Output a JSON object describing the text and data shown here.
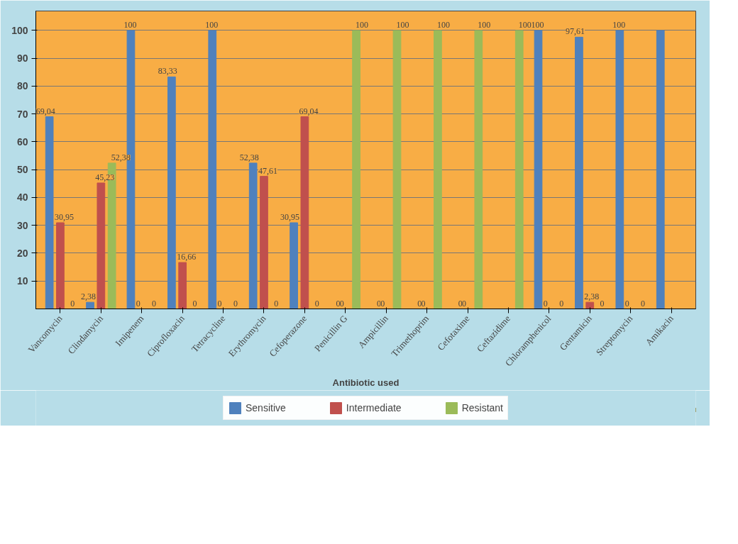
{
  "chart_data": {
    "type": "bar",
    "xlabel": "Antibiotic used",
    "categories": [
      "Vancomycin",
      "Clindamycin",
      "Imipenem",
      "Ciprofloxacin",
      "Tetracycline",
      "Erythromycin",
      "Cefoperazone",
      "Penicillin G",
      "Ampicillin",
      "Trimethoprim",
      "Cefotaxime",
      "Ceftazidime",
      "Chloramphenicol",
      "Gentamicin",
      "Streptomycin",
      "Amikacin"
    ],
    "series": [
      {
        "name": "Sensitive",
        "color": "#4f81bd",
        "values": [
          69.04,
          2.38,
          100,
          83.33,
          100,
          52.38,
          30.95,
          0,
          0,
          0,
          0,
          0,
          100,
          97.61,
          100,
          100
        ],
        "value_labels": [
          "69,04",
          "2,38",
          "100",
          "83,33",
          "100",
          "52,38",
          "30,95",
          "0",
          "0",
          "0",
          "0",
          null,
          "100",
          "97,61",
          "100",
          null
        ]
      },
      {
        "name": "Intermediate",
        "color": "#c0504d",
        "values": [
          30.95,
          45.23,
          0,
          16.66,
          0,
          47.61,
          69.04,
          0,
          0,
          0,
          0,
          0,
          0,
          2.38,
          0,
          0
        ],
        "value_labels": [
          "30,95",
          "45,23",
          "0",
          "16,66",
          "0",
          "47,61",
          "69,04",
          "0",
          "0",
          "0",
          "0",
          null,
          "0",
          "2,38",
          "0",
          null
        ]
      },
      {
        "name": "Resistant",
        "color": "#9bbb59",
        "values": [
          0,
          52.38,
          0,
          0,
          0,
          0,
          0,
          100,
          100,
          100,
          100,
          100,
          0,
          0,
          0,
          0
        ],
        "value_labels": [
          "0",
          "52,38",
          "0",
          "0",
          "0",
          "0",
          "0",
          "100",
          "100",
          "100",
          "100",
          "100",
          "0",
          "0",
          "0",
          null
        ]
      }
    ],
    "ylim": [
      0,
      107
    ],
    "yticks": [
      10,
      20,
      30,
      40,
      50,
      60,
      70,
      80,
      90,
      100
    ],
    "grid": "y",
    "legend": "bottom"
  }
}
